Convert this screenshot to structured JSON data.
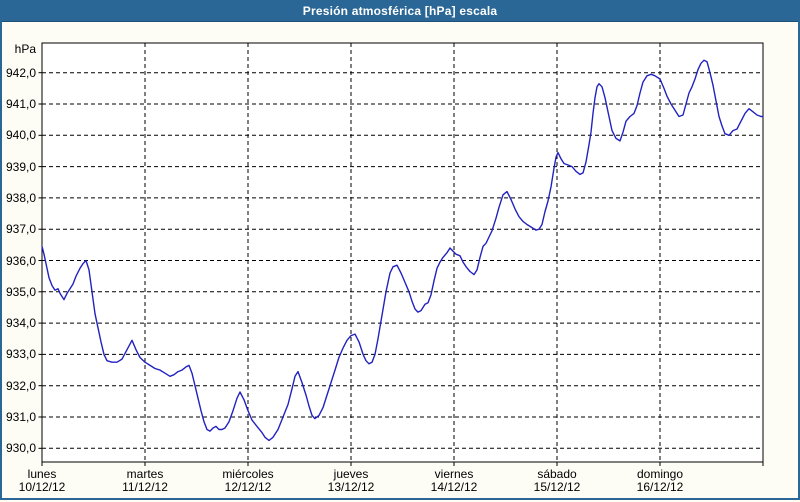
{
  "title": "Presión atmosférica [hPa] escala",
  "colors": {
    "frame_blue": "#2a6796",
    "titlebar_blue": "#2a6796",
    "titlebar_edge": "#1e517a",
    "line_blue": "#2222c0",
    "background": "#fdfdf6",
    "plot_background": "#ffffff",
    "grid": "#000000"
  },
  "chart_data": {
    "type": "line",
    "title": "Presión atmosférica [hPa] escala",
    "ylabel": "hPa",
    "xlabel": "",
    "legend": "none",
    "grid": "dashed black, horizontal every 1.0 hPa, vertical at each day start",
    "ylim": [
      929.55,
      942.95
    ],
    "xlim_days": [
      0,
      7
    ],
    "yticks": [
      942,
      941,
      940,
      939,
      938,
      937,
      936,
      935,
      934,
      933,
      932,
      931,
      930
    ],
    "ytick_labels": [
      "942,0",
      "941,0",
      "940,0",
      "939,0",
      "938,0",
      "937,0",
      "936,0",
      "935,0",
      "934,0",
      "933,0",
      "932,0",
      "931,0",
      "930,0"
    ],
    "days": [
      {
        "name": "lunes",
        "date": "10/12/12"
      },
      {
        "name": "martes",
        "date": "11/12/12"
      },
      {
        "name": "miércoles",
        "date": "12/12/12"
      },
      {
        "name": "jueves",
        "date": "13/12/12"
      },
      {
        "name": "viernes",
        "date": "14/12/12"
      },
      {
        "name": "sábado",
        "date": "15/12/12"
      },
      {
        "name": "domingo",
        "date": "16/12/12"
      }
    ],
    "series": [
      {
        "name": "Presión atmosférica",
        "unit": "hPa",
        "color": "#2222c0",
        "x_unit": "days from 10/12/12 00:00",
        "points": [
          [
            0,
            936.45
          ],
          [
            0.019,
            936.2
          ],
          [
            0.039,
            935.9
          ],
          [
            0.068,
            935.45
          ],
          [
            0.097,
            935.2
          ],
          [
            0.126,
            935.05
          ],
          [
            0.155,
            935.1
          ],
          [
            0.175,
            934.95
          ],
          [
            0.194,
            934.85
          ],
          [
            0.214,
            934.75
          ],
          [
            0.243,
            934.95
          ],
          [
            0.272,
            935.1
          ],
          [
            0.301,
            935.25
          ],
          [
            0.33,
            935.5
          ],
          [
            0.369,
            935.75
          ],
          [
            0.398,
            935.9
          ],
          [
            0.427,
            936.0
          ],
          [
            0.456,
            935.7
          ],
          [
            0.485,
            935.0
          ],
          [
            0.515,
            934.3
          ],
          [
            0.544,
            933.85
          ],
          [
            0.573,
            933.4
          ],
          [
            0.602,
            933.0
          ],
          [
            0.631,
            932.8
          ],
          [
            0.68,
            932.75
          ],
          [
            0.728,
            932.75
          ],
          [
            0.777,
            932.85
          ],
          [
            0.825,
            933.15
          ],
          [
            0.874,
            933.45
          ],
          [
            0.913,
            933.15
          ],
          [
            0.951,
            932.9
          ],
          [
            1.0,
            932.75
          ],
          [
            1.049,
            932.65
          ],
          [
            1.097,
            932.55
          ],
          [
            1.146,
            932.5
          ],
          [
            1.194,
            932.4
          ],
          [
            1.243,
            932.3
          ],
          [
            1.282,
            932.35
          ],
          [
            1.32,
            932.45
          ],
          [
            1.359,
            932.5
          ],
          [
            1.398,
            932.6
          ],
          [
            1.427,
            932.65
          ],
          [
            1.456,
            932.4
          ],
          [
            1.485,
            932.0
          ],
          [
            1.515,
            931.6
          ],
          [
            1.544,
            931.2
          ],
          [
            1.573,
            930.85
          ],
          [
            1.602,
            930.6
          ],
          [
            1.631,
            930.55
          ],
          [
            1.66,
            930.65
          ],
          [
            1.689,
            930.7
          ],
          [
            1.718,
            930.6
          ],
          [
            1.748,
            930.6
          ],
          [
            1.777,
            930.65
          ],
          [
            1.816,
            930.85
          ],
          [
            1.854,
            931.2
          ],
          [
            1.893,
            931.6
          ],
          [
            1.922,
            931.8
          ],
          [
            1.961,
            931.55
          ],
          [
            2.0,
            931.2
          ],
          [
            2.039,
            930.9
          ],
          [
            2.087,
            930.7
          ],
          [
            2.136,
            930.5
          ],
          [
            2.165,
            930.35
          ],
          [
            2.204,
            930.25
          ],
          [
            2.243,
            930.35
          ],
          [
            2.291,
            930.6
          ],
          [
            2.34,
            931.0
          ],
          [
            2.388,
            931.4
          ],
          [
            2.427,
            931.9
          ],
          [
            2.456,
            932.3
          ],
          [
            2.485,
            932.45
          ],
          [
            2.524,
            932.1
          ],
          [
            2.563,
            931.7
          ],
          [
            2.592,
            931.35
          ],
          [
            2.621,
            931.05
          ],
          [
            2.65,
            930.95
          ],
          [
            2.689,
            931.05
          ],
          [
            2.728,
            931.3
          ],
          [
            2.767,
            931.7
          ],
          [
            2.806,
            932.1
          ],
          [
            2.845,
            932.5
          ],
          [
            2.883,
            932.9
          ],
          [
            2.922,
            933.2
          ],
          [
            2.961,
            933.45
          ],
          [
            3.0,
            933.6
          ],
          [
            3.039,
            933.65
          ],
          [
            3.078,
            933.4
          ],
          [
            3.117,
            933.0
          ],
          [
            3.146,
            932.8
          ],
          [
            3.175,
            932.7
          ],
          [
            3.204,
            932.75
          ],
          [
            3.233,
            933.0
          ],
          [
            3.262,
            933.5
          ],
          [
            3.301,
            934.25
          ],
          [
            3.34,
            935.0
          ],
          [
            3.379,
            935.6
          ],
          [
            3.408,
            935.8
          ],
          [
            3.447,
            935.85
          ],
          [
            3.485,
            935.6
          ],
          [
            3.524,
            935.3
          ],
          [
            3.563,
            935.0
          ],
          [
            3.592,
            934.7
          ],
          [
            3.621,
            934.45
          ],
          [
            3.65,
            934.35
          ],
          [
            3.68,
            934.4
          ],
          [
            3.718,
            934.6
          ],
          [
            3.748,
            934.65
          ],
          [
            3.777,
            934.9
          ],
          [
            3.806,
            935.35
          ],
          [
            3.835,
            935.75
          ],
          [
            3.864,
            935.95
          ],
          [
            3.893,
            936.1
          ],
          [
            3.932,
            936.25
          ],
          [
            3.961,
            936.4
          ],
          [
            3.99,
            936.3
          ],
          [
            4.019,
            936.2
          ],
          [
            4.058,
            936.15
          ],
          [
            4.087,
            935.95
          ],
          [
            4.117,
            935.8
          ],
          [
            4.155,
            935.65
          ],
          [
            4.194,
            935.55
          ],
          [
            4.223,
            935.7
          ],
          [
            4.252,
            936.1
          ],
          [
            4.282,
            936.45
          ],
          [
            4.311,
            936.55
          ],
          [
            4.34,
            936.75
          ],
          [
            4.369,
            936.95
          ],
          [
            4.408,
            937.35
          ],
          [
            4.437,
            937.7
          ],
          [
            4.476,
            938.1
          ],
          [
            4.515,
            938.2
          ],
          [
            4.553,
            937.95
          ],
          [
            4.592,
            937.65
          ],
          [
            4.631,
            937.4
          ],
          [
            4.67,
            937.25
          ],
          [
            4.709,
            937.15
          ],
          [
            4.757,
            937.05
          ],
          [
            4.796,
            936.97
          ],
          [
            4.825,
            937.0
          ],
          [
            4.854,
            937.15
          ],
          [
            4.883,
            937.55
          ],
          [
            4.913,
            937.9
          ],
          [
            4.942,
            938.35
          ],
          [
            4.971,
            938.95
          ],
          [
            4.99,
            939.3
          ],
          [
            5.01,
            939.45
          ],
          [
            5.039,
            939.25
          ],
          [
            5.068,
            939.1
          ],
          [
            5.107,
            939.05
          ],
          [
            5.146,
            939.0
          ],
          [
            5.184,
            938.85
          ],
          [
            5.223,
            938.75
          ],
          [
            5.252,
            938.8
          ],
          [
            5.282,
            939.15
          ],
          [
            5.311,
            939.7
          ],
          [
            5.33,
            940.1
          ],
          [
            5.35,
            940.7
          ],
          [
            5.369,
            941.2
          ],
          [
            5.388,
            941.55
          ],
          [
            5.408,
            941.65
          ],
          [
            5.437,
            941.55
          ],
          [
            5.466,
            941.2
          ],
          [
            5.505,
            940.6
          ],
          [
            5.534,
            940.15
          ],
          [
            5.573,
            939.9
          ],
          [
            5.612,
            939.82
          ],
          [
            5.641,
            940.1
          ],
          [
            5.67,
            940.45
          ],
          [
            5.709,
            940.6
          ],
          [
            5.748,
            940.7
          ],
          [
            5.777,
            940.95
          ],
          [
            5.806,
            941.35
          ],
          [
            5.835,
            941.7
          ],
          [
            5.874,
            941.9
          ],
          [
            5.913,
            941.95
          ],
          [
            5.951,
            941.9
          ],
          [
            6.0,
            941.8
          ],
          [
            6.039,
            941.5
          ],
          [
            6.068,
            941.25
          ],
          [
            6.107,
            941.0
          ],
          [
            6.146,
            940.8
          ],
          [
            6.184,
            940.6
          ],
          [
            6.223,
            940.65
          ],
          [
            6.252,
            941.0
          ],
          [
            6.282,
            941.35
          ],
          [
            6.311,
            941.55
          ],
          [
            6.34,
            941.8
          ],
          [
            6.369,
            942.1
          ],
          [
            6.398,
            942.3
          ],
          [
            6.427,
            942.4
          ],
          [
            6.456,
            942.35
          ],
          [
            6.485,
            942.0
          ],
          [
            6.515,
            941.6
          ],
          [
            6.544,
            941.1
          ],
          [
            6.573,
            940.6
          ],
          [
            6.602,
            940.3
          ],
          [
            6.631,
            940.05
          ],
          [
            6.67,
            940.0
          ],
          [
            6.709,
            940.15
          ],
          [
            6.748,
            940.2
          ],
          [
            6.786,
            940.45
          ],
          [
            6.825,
            940.7
          ],
          [
            6.864,
            940.85
          ],
          [
            6.903,
            940.75
          ],
          [
            6.942,
            940.65
          ],
          [
            6.981,
            940.6
          ],
          [
            7.0,
            940.6
          ]
        ]
      }
    ]
  }
}
